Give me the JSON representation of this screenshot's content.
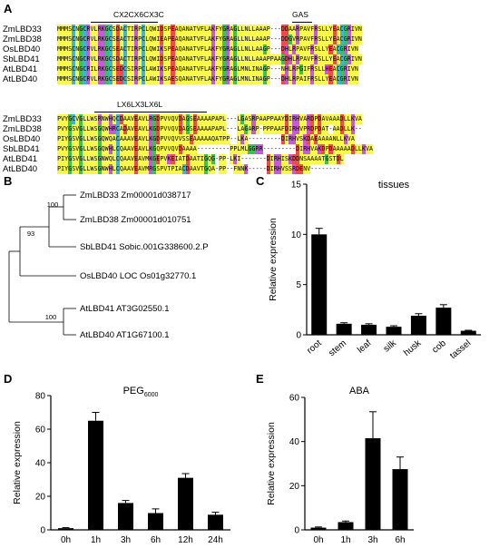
{
  "panels": {
    "a": "A",
    "b": "B",
    "c": "C",
    "d": "D",
    "e": "E"
  },
  "alignment": {
    "blocks": [
      {
        "motifs": [
          {
            "label": "CX2CX6CX3C"
          },
          {
            "label": "GAS"
          }
        ],
        "rows": [
          {
            "name": "ZmLBD33",
            "seq": "MMMSCNGCRVLRKGCSDACTIRPCLQWIDSPEAQANATVFLAKFYGRAGLLNLLAAAP---DDAARPAVFRSLLYEACGRIVN"
          },
          {
            "name": "ZmLBD38",
            "seq": "MMMSCNGCRVLRKGCSEACTIRPCLQWIEAPEAQANATVFLAKFYGRAGLLNLLAAAP---DDGVRPAVFRSLLYEACGRIVN"
          },
          {
            "name": "OsLBD40",
            "seq": "MMMSCNGCRVLRKGCSEACTIRPCLQWIKSPEAQANATVFLAKFYGRAGLLNLLAAGP---DHLRPAVFRSLLYEACGRIVN"
          },
          {
            "name": "SbLBD41",
            "seq": "MMMSCNGCRVLRKGCSDACTIRPCLQWIDSPEAQANATVFLAKFYGRAGLLNLLAAAPPAAGDHLRPAVFRSLLYEACGRIVN"
          },
          {
            "name": "AtLBD41",
            "seq": "MMMSCNGCRILRKGCSEDCSIRPCLAWIKSPEAQANATVFLAKFYGRAGLMNLINAGP---NHLRPGIFRSLLHEACGRIVN"
          },
          {
            "name": "AtLBD40",
            "seq": "MMMSCNGCRVLRKGCSEDCSIRPCLAWIKSAESQANATVFLAKFYGRAGLMNLINAGP---DHLRPAIFRSLLYEACGRIVN"
          }
        ]
      },
      {
        "motifs": [
          {
            "label": "LX6LX3LX6L"
          }
        ],
        "rows": [
          {
            "name": "ZmLBD33",
            "seq": "PVYGCVGLLWSRNWHQCDAAVEAVLRGDPVVQVDAGSEAAAAPAPL---LGASRPAAPPAAYDIRHVARDPDAVAAADLLKVA"
          },
          {
            "name": "ZmLBD38",
            "seq": "PVYGSVGLLWSGQWHRCADAVEAVLKGDPVVQVDAGSEAAAAPAPL---LAGARP-PPPAAFDIRHVPRDPDAT-AADLLK--"
          },
          {
            "name": "OsLBD40",
            "seq": "PIYGSVGLLWSGQWQACAAAVEAVLKGDPVVQVVSSEAAAAAQATPP--LKA---------DIRHVSKDAEAAAANLLKVA"
          },
          {
            "name": "SbLBD41",
            "seq": "PVYGSVGLLWSGQWHLCQAAVEAVLKGQPVVQVDAAAA---------PPLMLGGRR---------DIRHVAKDPDAAAAADLLKVA"
          },
          {
            "name": "AtLBD41",
            "seq": "PIYGSVGLLWSGNWQLCQAAVEAVMKGEPVKEIATDAATIGQG-PP-LKI-------DIRHISKDDNSAAAATGSTDL"
          },
          {
            "name": "AtLBD40",
            "seq": "PIYGSVGLLWSGNWHLCQAAVEAVMRGSPVTPIACDAAVTGQA-PP--FNNK-----DIRHVSSRDENV--------"
          }
        ]
      }
    ]
  },
  "tree": {
    "taxa": [
      {
        "name": "ZmLBD33",
        "id": "Zm00001d038717"
      },
      {
        "name": "ZmLBD38",
        "id": "Zm00001d010751"
      },
      {
        "name": "SbLBD41",
        "id": "Sobic.001G338600.2.P"
      },
      {
        "name": "OsLBD40",
        "id": "LOC Os01g32770.1"
      },
      {
        "name": "AtLBD41",
        "id": "AT3G02550.1"
      },
      {
        "name": "AtLBD40",
        "id": "AT1G67100.1"
      }
    ],
    "bootstrap": [
      "100",
      "93",
      "100"
    ]
  },
  "chart_data": [
    {
      "type": "bar",
      "panel": "C",
      "title": "tissues",
      "ylabel": "Relative expression",
      "categories": [
        "root",
        "stem",
        "leaf",
        "silk",
        "husk",
        "cob",
        "tassel"
      ],
      "values": [
        10.0,
        1.1,
        1.0,
        0.8,
        1.9,
        2.7,
        0.4
      ],
      "errors": [
        0.6,
        0.1,
        0.1,
        0.1,
        0.2,
        0.3,
        0.05
      ],
      "ylim": [
        0,
        15
      ],
      "yticks": [
        "0",
        "5",
        "10",
        "15"
      ]
    },
    {
      "type": "bar",
      "panel": "D",
      "title": "PEG",
      "title_sub": "6000",
      "ylabel": "Relative expression",
      "categories": [
        "0h",
        "1h",
        "3h",
        "6h",
        "12h",
        "24h"
      ],
      "values": [
        1,
        65,
        16,
        10,
        31,
        9
      ],
      "errors": [
        0.3,
        5,
        1.5,
        2.5,
        2.5,
        1.5
      ],
      "ylim": [
        0,
        80
      ],
      "yticks": [
        "0",
        "20",
        "40",
        "60",
        "80"
      ]
    },
    {
      "type": "bar",
      "panel": "E",
      "title": "ABA",
      "ylabel": "Relative expression",
      "categories": [
        "0h",
        "1h",
        "3h",
        "6h"
      ],
      "values": [
        1,
        3.5,
        41.5,
        27.5
      ],
      "errors": [
        0.3,
        0.5,
        12,
        5.5
      ],
      "ylim": [
        0,
        60
      ],
      "yticks": [
        "0",
        "20",
        "40",
        "60"
      ]
    }
  ],
  "colors": {
    "C": "#40b3d9",
    "G": "#3ac25a",
    "S": "#f7f74c",
    "T": "#f7f74c",
    "N": "#f7f74c",
    "Q": "#f7f74c",
    "A": "#f7f74c",
    "V": "#f7f74c",
    "L": "#f7f74c",
    "I": "#f7f74c",
    "M": "#f7f74c",
    "F": "#f7f74c",
    "W": "#f7f74c",
    "Y": "#f7f74c",
    "P": "#f7f74c",
    "K": "#c65ad8",
    "R": "#c65ad8",
    "H": "#c65ad8",
    "D": "#ef4b4b",
    "E": "#ef4b4b",
    "bar": "#000000"
  }
}
